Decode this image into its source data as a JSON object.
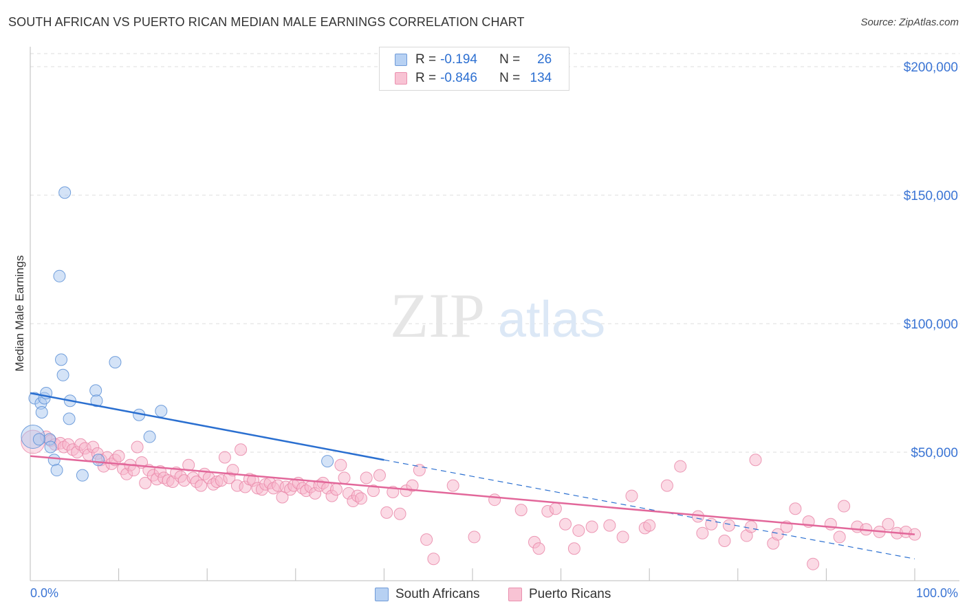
{
  "title": "SOUTH AFRICAN VS PUERTO RICAN MEDIAN MALE EARNINGS CORRELATION CHART",
  "source": "Source: ZipAtlas.com",
  "watermark": {
    "zip": "ZIP",
    "atlas": "atlas"
  },
  "legend": {
    "south_african": {
      "r_label": "R =",
      "r_value": "-0.194",
      "n_label": "N =",
      "n_value": "26"
    },
    "puerto_rican": {
      "r_label": "R =",
      "r_value": "-0.846",
      "n_label": "N =",
      "n_value": "134"
    }
  },
  "bottom_legend": {
    "south_african": "South Africans",
    "puerto_rican": "Puerto Ricans"
  },
  "colors": {
    "south_african_fill": "#a9c8f0",
    "south_african_stroke": "#5b8fd6",
    "south_african_line": "#2a6fd0",
    "puerto_rican_fill": "#f7b6cb",
    "puerto_rican_stroke": "#e987a8",
    "puerto_rican_line": "#e2679a",
    "axis_text": "#3a74d4",
    "grid": "#dddddd"
  },
  "chart_data": {
    "type": "scatter",
    "xlabel": "",
    "ylabel": "Median Male Earnings",
    "xlim": [
      0,
      100
    ],
    "ylim": [
      0,
      210000
    ],
    "x_tick_labels": [
      "0.0%",
      "100.0%"
    ],
    "y_ticks": [
      50000,
      100000,
      150000,
      200000
    ],
    "y_tick_labels": [
      "$50,000",
      "$100,000",
      "$150,000",
      "$200,000"
    ],
    "grid": true,
    "series": [
      {
        "name": "South Africans",
        "trend": {
          "x0": 0,
          "y0": 73000,
          "x1": 40,
          "y1": 47000,
          "dashed_to_x": 100,
          "dashed_to_y": 8500
        },
        "points": [
          [
            0.3,
            56000,
            "big"
          ],
          [
            0.5,
            71000
          ],
          [
            1.2,
            69000
          ],
          [
            1.3,
            65500
          ],
          [
            1.6,
            71000
          ],
          [
            1.8,
            73000
          ],
          [
            2.2,
            55000
          ],
          [
            2.3,
            52000
          ],
          [
            2.7,
            47000
          ],
          [
            3.0,
            43000
          ],
          [
            3.3,
            118500
          ],
          [
            3.5,
            86000
          ],
          [
            3.7,
            80000
          ],
          [
            3.9,
            151000
          ],
          [
            4.4,
            63000
          ],
          [
            4.5,
            70000
          ],
          [
            5.9,
            41000
          ],
          [
            7.4,
            74000
          ],
          [
            7.5,
            70000
          ],
          [
            7.7,
            47000
          ],
          [
            9.6,
            85000
          ],
          [
            12.3,
            64500
          ],
          [
            13.5,
            56000
          ],
          [
            14.8,
            66000
          ],
          [
            33.6,
            46500
          ],
          [
            1.0,
            55000
          ]
        ]
      },
      {
        "name": "Puerto Ricans",
        "trend": {
          "x0": 0,
          "y0": 48500,
          "x1": 100,
          "y1": 18000
        },
        "points": [
          [
            0.3,
            54000,
            "big"
          ],
          [
            1.8,
            56000
          ],
          [
            2.3,
            54500
          ],
          [
            2.8,
            53000
          ],
          [
            3.4,
            53500
          ],
          [
            3.8,
            52000
          ],
          [
            4.3,
            53000
          ],
          [
            4.8,
            51000
          ],
          [
            5.3,
            50000
          ],
          [
            5.7,
            53000
          ],
          [
            6.2,
            51500
          ],
          [
            6.6,
            49000
          ],
          [
            7.1,
            52000
          ],
          [
            7.6,
            49500
          ],
          [
            8.0,
            47000
          ],
          [
            8.3,
            44500
          ],
          [
            8.7,
            48000
          ],
          [
            9.2,
            45500
          ],
          [
            9.6,
            47000
          ],
          [
            10.0,
            48500
          ],
          [
            10.5,
            43500
          ],
          [
            10.9,
            41500
          ],
          [
            11.3,
            45000
          ],
          [
            11.7,
            43000
          ],
          [
            12.1,
            52000
          ],
          [
            12.6,
            46000
          ],
          [
            13.0,
            38000
          ],
          [
            13.4,
            43000
          ],
          [
            13.9,
            41000
          ],
          [
            14.3,
            39500
          ],
          [
            14.7,
            42500
          ],
          [
            15.1,
            40000
          ],
          [
            15.6,
            39000
          ],
          [
            16.1,
            38500
          ],
          [
            16.5,
            42000
          ],
          [
            17.0,
            40500
          ],
          [
            17.4,
            39000
          ],
          [
            17.9,
            45000
          ],
          [
            18.4,
            40000
          ],
          [
            18.8,
            38500
          ],
          [
            19.3,
            37000
          ],
          [
            19.7,
            41500
          ],
          [
            20.2,
            40000
          ],
          [
            20.7,
            37500
          ],
          [
            21.1,
            38500
          ],
          [
            21.6,
            39000
          ],
          [
            22.0,
            48000
          ],
          [
            22.5,
            40000
          ],
          [
            22.9,
            43000
          ],
          [
            23.4,
            37000
          ],
          [
            23.8,
            51000
          ],
          [
            24.3,
            36500
          ],
          [
            24.8,
            39500
          ],
          [
            25.2,
            39000
          ],
          [
            25.7,
            36000
          ],
          [
            26.2,
            35500
          ],
          [
            26.6,
            37500
          ],
          [
            27.1,
            38000
          ],
          [
            27.5,
            36000
          ],
          [
            28.0,
            37000
          ],
          [
            28.5,
            32500
          ],
          [
            28.9,
            36500
          ],
          [
            29.4,
            35500
          ],
          [
            29.8,
            37000
          ],
          [
            30.3,
            38000
          ],
          [
            30.8,
            36000
          ],
          [
            31.2,
            35000
          ],
          [
            31.7,
            36500
          ],
          [
            32.2,
            34000
          ],
          [
            32.7,
            37000
          ],
          [
            33.1,
            38000
          ],
          [
            33.6,
            36000
          ],
          [
            34.1,
            33000
          ],
          [
            34.6,
            35500
          ],
          [
            35.1,
            45000
          ],
          [
            35.5,
            40000
          ],
          [
            36.0,
            34000
          ],
          [
            36.5,
            31000
          ],
          [
            37.0,
            33000
          ],
          [
            37.4,
            32000
          ],
          [
            38.0,
            40000
          ],
          [
            38.8,
            35000
          ],
          [
            39.5,
            41000
          ],
          [
            40.3,
            26500
          ],
          [
            41.0,
            34500
          ],
          [
            41.8,
            26000
          ],
          [
            42.5,
            35000
          ],
          [
            43.2,
            37000
          ],
          [
            44.0,
            43000
          ],
          [
            44.8,
            16000
          ],
          [
            45.6,
            8500
          ],
          [
            47.8,
            37000
          ],
          [
            50.2,
            17000
          ],
          [
            52.5,
            31500
          ],
          [
            55.5,
            27500
          ],
          [
            57.0,
            15000
          ],
          [
            57.5,
            12500
          ],
          [
            58.5,
            27000
          ],
          [
            59.4,
            28000
          ],
          [
            60.5,
            22000
          ],
          [
            61.5,
            12500
          ],
          [
            62.0,
            19500
          ],
          [
            63.5,
            21000
          ],
          [
            65.5,
            21500
          ],
          [
            67.0,
            17000
          ],
          [
            68.0,
            33000
          ],
          [
            69.5,
            20500
          ],
          [
            70.0,
            21500
          ],
          [
            72.0,
            37000
          ],
          [
            73.5,
            44500
          ],
          [
            75.5,
            25000
          ],
          [
            77.0,
            22000
          ],
          [
            78.5,
            15500
          ],
          [
            79.0,
            21500
          ],
          [
            81.0,
            17500
          ],
          [
            82.0,
            47000
          ],
          [
            84.0,
            14500
          ],
          [
            84.5,
            18000
          ],
          [
            85.5,
            21000
          ],
          [
            86.5,
            28000
          ],
          [
            88.0,
            23000
          ],
          [
            88.5,
            6500
          ],
          [
            90.5,
            22000
          ],
          [
            91.5,
            17000
          ],
          [
            92.0,
            29000
          ],
          [
            93.5,
            21000
          ],
          [
            94.5,
            20000
          ],
          [
            96.0,
            19000
          ],
          [
            97.0,
            22000
          ],
          [
            98.0,
            18500
          ],
          [
            99.0,
            19000
          ],
          [
            100.0,
            18000
          ],
          [
            81.5,
            21000
          ],
          [
            76.0,
            18500
          ]
        ]
      }
    ]
  }
}
